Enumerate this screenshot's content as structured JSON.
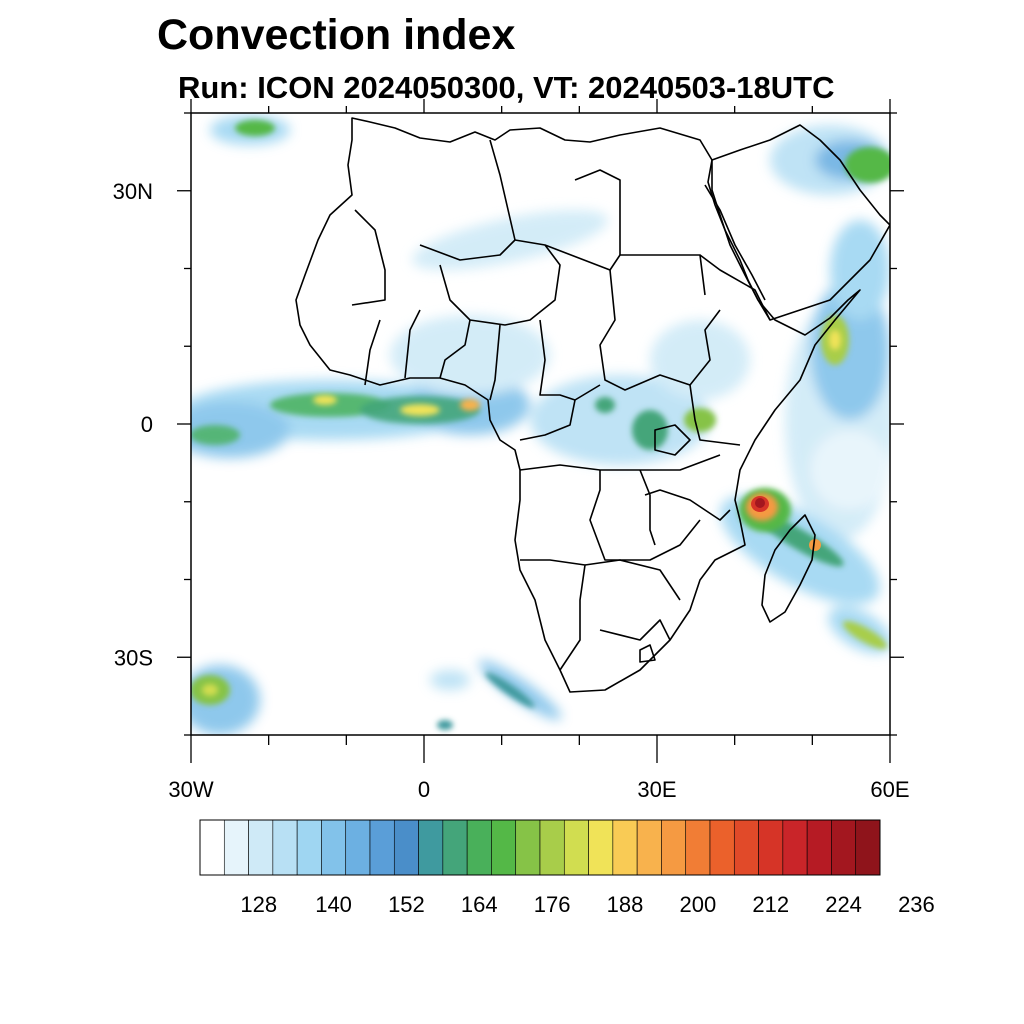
{
  "title": "Convection index",
  "subtitle": "Run: ICON 2024050300,  VT: 20240503-18UTC",
  "map": {
    "projection": "cylindrical equidistant",
    "lon_range": [
      -30,
      60
    ],
    "lat_range": [
      -40,
      40
    ],
    "lat_ticks": [
      {
        "lat": 30,
        "label": "30N"
      },
      {
        "lat": 0,
        "label": "0"
      },
      {
        "lat": -30,
        "label": "30S"
      }
    ],
    "lon_ticks": [
      {
        "lon": -30,
        "label": "30W"
      },
      {
        "lon": 0,
        "label": "0"
      },
      {
        "lon": 30,
        "label": "30E"
      },
      {
        "lon": 60,
        "label": "60E"
      }
    ],
    "minor_lat_ticks": [
      40,
      20,
      10,
      -10,
      -20,
      -40
    ],
    "minor_lon_ticks": [
      -20,
      -10,
      10,
      20,
      40,
      50
    ],
    "regions": "Africa and surrounding Atlantic / Indian Ocean",
    "features": [
      "Intertropical band of high convection index along the equatorial Atlantic and West Africa",
      "Strong convective cell (values above 224) near northern Madagascar / Comoros",
      "Convection over Ethiopia, East African coast and Arabian Peninsula",
      "Southern Atlantic convection near 35S"
    ]
  },
  "colorbar": {
    "colors": [
      "#ffffff",
      "#e6f4fb",
      "#cfeaf7",
      "#b8e0f4",
      "#9fd6f2",
      "#82c2ea",
      "#6cb0e2",
      "#5a9ed8",
      "#4a8ec9",
      "#3f9a9f",
      "#44a57a",
      "#49b05a",
      "#54b847",
      "#86c347",
      "#a8cd4a",
      "#d1dd50",
      "#f0e358",
      "#f9cb55",
      "#f8b24d",
      "#f59a42",
      "#f17d35",
      "#eb612b",
      "#e14a29",
      "#d63427",
      "#c92529",
      "#b61b24",
      "#a3171f",
      "#8f141b"
    ],
    "labels": [
      "128",
      "140",
      "152",
      "164",
      "176",
      "188",
      "200",
      "212",
      "224",
      "236"
    ]
  }
}
